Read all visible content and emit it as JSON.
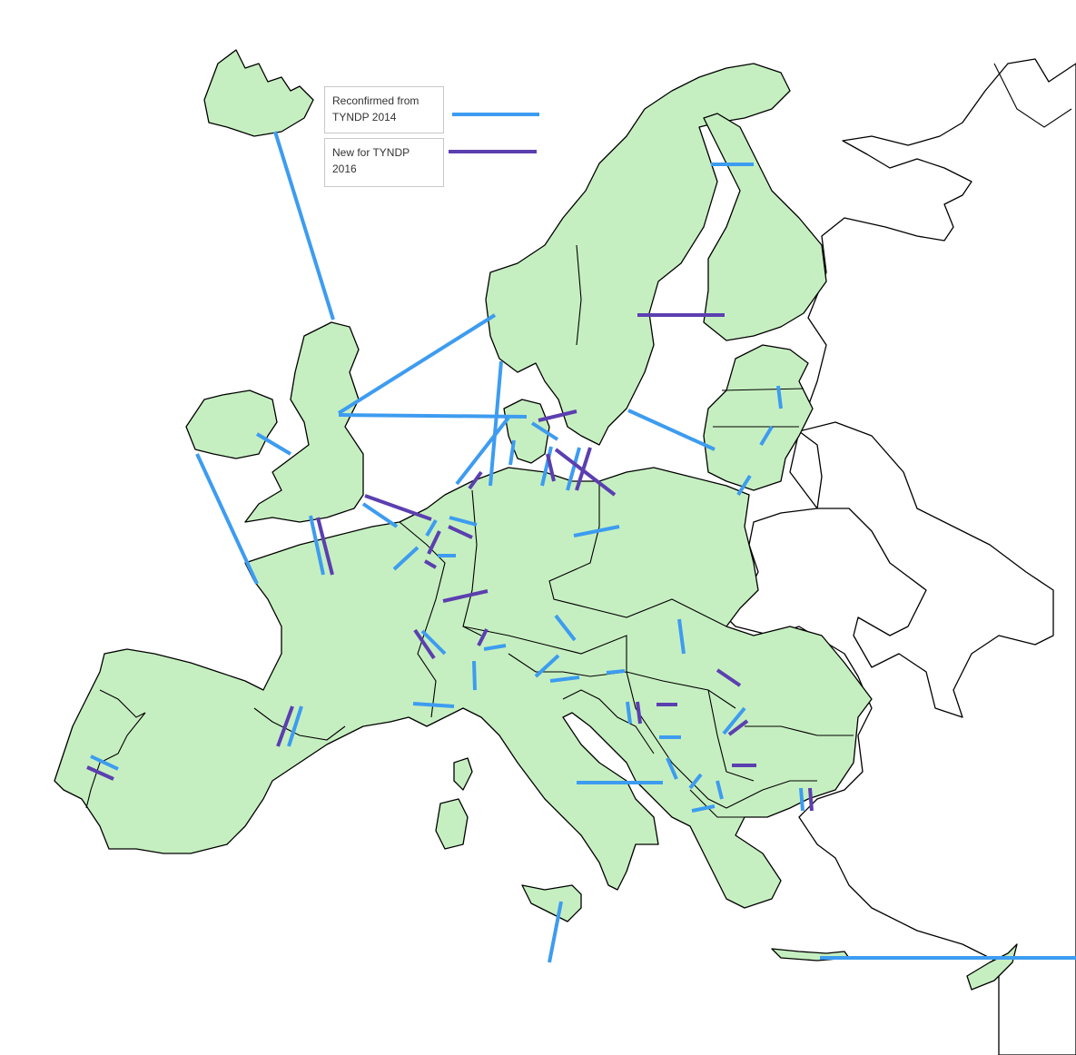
{
  "legend": {
    "reconfirmed": {
      "label_line1": "Reconfirmed from",
      "label_line2": "TYNDP 2014",
      "color": "#3d9cf0"
    },
    "new": {
      "label_line1": "New for TYNDP",
      "label_line2": "2016",
      "color": "#5b3fb0"
    }
  },
  "colors": {
    "eu_land": "#c6efc1",
    "non_eu_land": "#ffffff",
    "outline": "#000000"
  }
}
